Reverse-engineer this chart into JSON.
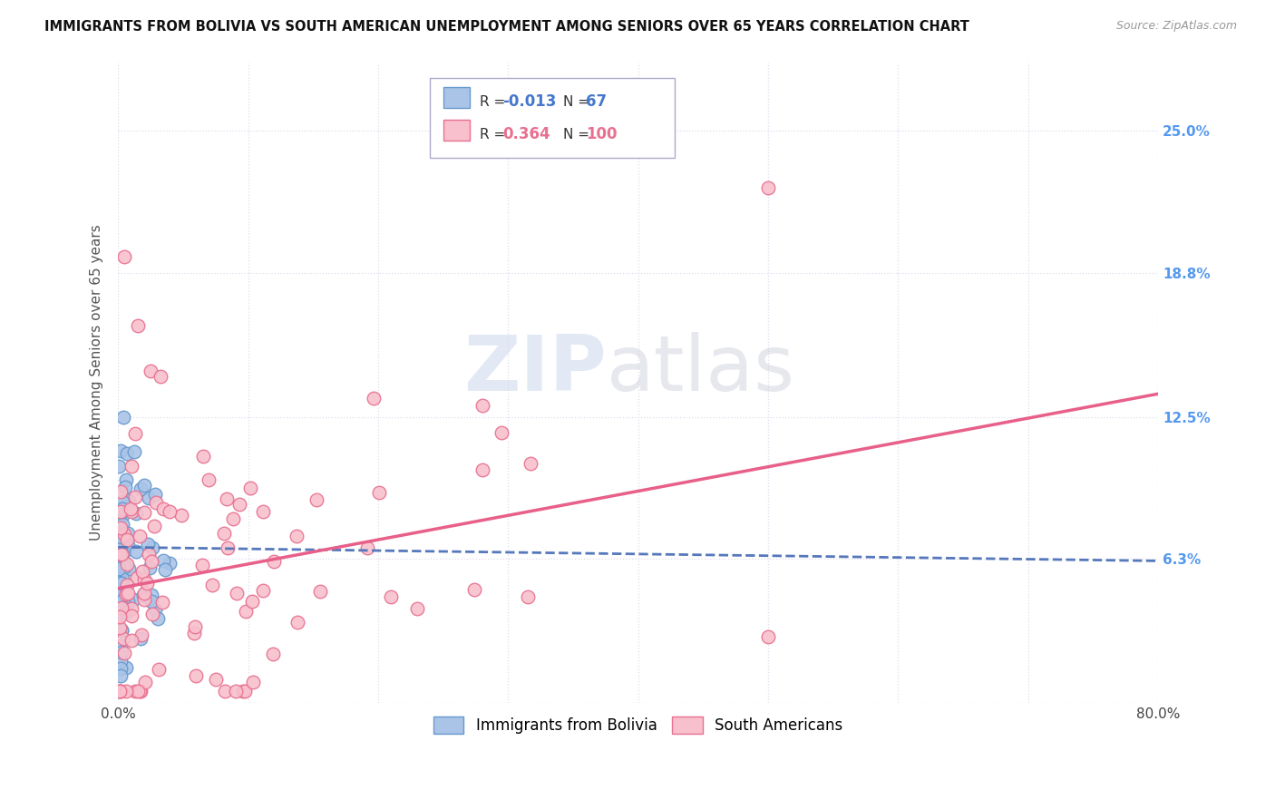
{
  "title": "IMMIGRANTS FROM BOLIVIA VS SOUTH AMERICAN UNEMPLOYMENT AMONG SENIORS OVER 65 YEARS CORRELATION CHART",
  "source": "Source: ZipAtlas.com",
  "ylabel": "Unemployment Among Seniors over 65 years",
  "xlim": [
    0,
    0.8
  ],
  "ylim": [
    0,
    0.28
  ],
  "bolivia_R": -0.013,
  "bolivia_N": 67,
  "sa_R": 0.364,
  "sa_N": 100,
  "bolivia_color": "#aac4e8",
  "bolivia_edge_color": "#6699cc",
  "sa_color": "#f8c0cc",
  "sa_edge_color": "#e87090",
  "bolivia_line_color": "#5577bb",
  "sa_line_color": "#e8608a",
  "right_tick_color": "#5599ee",
  "background_color": "#ffffff",
  "grid_color": "#ddddee",
  "watermark_zip_color": "#ccd8ec",
  "watermark_atlas_color": "#c8ccd8"
}
